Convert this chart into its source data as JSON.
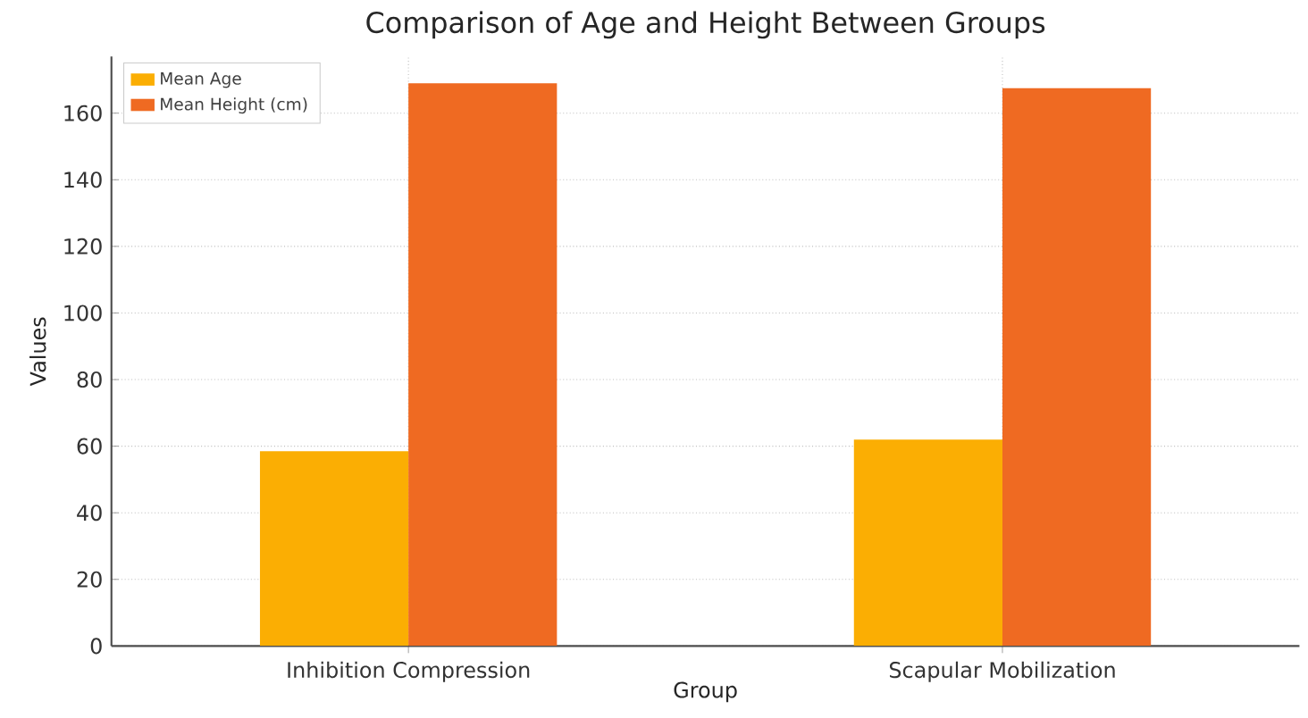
{
  "chart_data": {
    "type": "bar",
    "title": "Comparison of Age and Height Between Groups",
    "xlabel": "Group",
    "ylabel": "Values",
    "categories": [
      "Inhibition Compression",
      "Scapular Mobilization"
    ],
    "series": [
      {
        "name": "Mean Age",
        "color": "#fbae03",
        "values": [
          58.5,
          62
        ]
      },
      {
        "name": "Mean Height (cm)",
        "color": "#ef6a22",
        "values": [
          169,
          167.5
        ]
      }
    ],
    "ylim": [
      0,
      177
    ],
    "yticks": [
      0,
      20,
      40,
      60,
      80,
      100,
      120,
      140,
      160
    ],
    "grid": true,
    "legend": "top left"
  }
}
